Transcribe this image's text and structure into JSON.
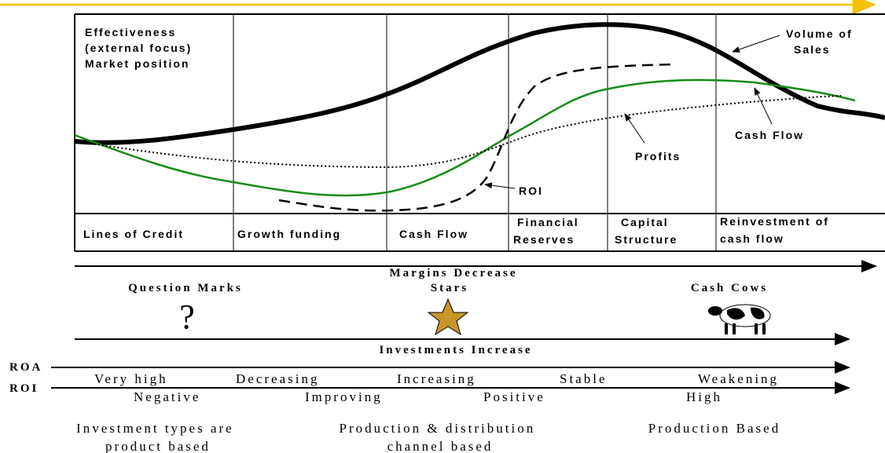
{
  "chart_area": {
    "corner_label": [
      "Effectiveness",
      "(external focus)",
      "Market position"
    ],
    "volume_label": [
      "Volume of",
      "Sales"
    ],
    "cash_flow_label": "Cash Flow",
    "profits_label": "Profits",
    "roi_label": "ROI"
  },
  "stages": [
    [
      "Lines of Credit"
    ],
    [
      "Growth funding"
    ],
    [
      "Cash Flow"
    ],
    [
      "Financial",
      "Reserves"
    ],
    [
      "Capital",
      "Structure"
    ],
    [
      "Reinvestment of",
      "cash flow"
    ]
  ],
  "margins": "Margins Decrease",
  "quadrants": {
    "question_marks": "Question Marks",
    "question_symbol": "?",
    "stars": "Stars",
    "cash_cows": "Cash Cows"
  },
  "investments": "Investments Increase",
  "roa": {
    "label": "ROA",
    "values": [
      "Very high",
      "Decreasing",
      "Increasing",
      "Stable",
      "Weakening"
    ]
  },
  "roi": {
    "label": "ROI",
    "values": [
      "Negative",
      "Improving",
      "Positive",
      "High"
    ]
  },
  "investment_types": [
    [
      "Investment types are",
      "product based"
    ],
    [
      "Production & distribution",
      "channel based"
    ],
    [
      "Production Based"
    ]
  ]
}
